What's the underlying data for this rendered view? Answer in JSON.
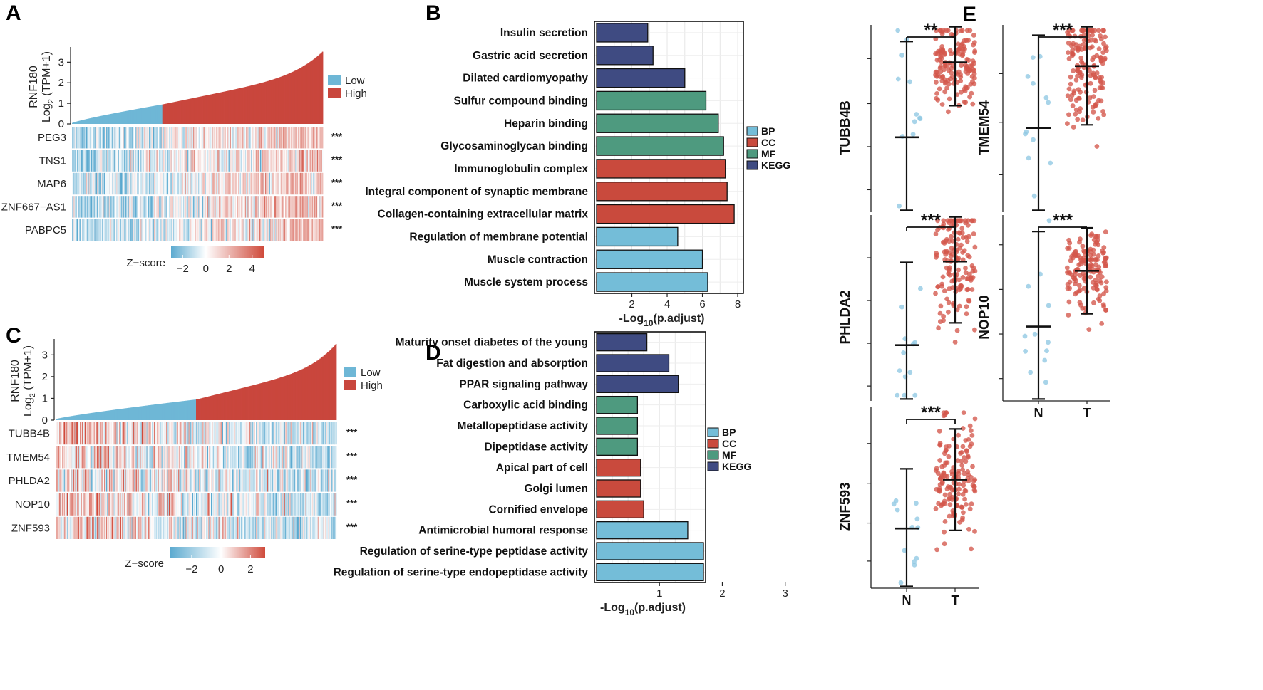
{
  "colors": {
    "low": "#6eb7d6",
    "high": "#c9463d",
    "BP": "#74bdd8",
    "CC": "#c94a3d",
    "MF": "#4e9a7f",
    "KEGG": "#3f4b82",
    "cold": "#5aa9cf",
    "hot": "#cf4a3b"
  },
  "panels": {
    "A": "A",
    "B": "B",
    "C": "C",
    "D": "D",
    "E": "E"
  },
  "chart_data": [
    {
      "id": "A",
      "type": "heatmap",
      "top_bar": {
        "ylabel_line1": "RNF180",
        "ylabel_line2": "Log2 (TPM+1)",
        "ylabel_base": "Log",
        "ylabel_sub": "2",
        "ylabel_rest": " (TPM+1)",
        "yticks": [
          "0",
          "1",
          "2",
          "3"
        ],
        "ylim": [
          0,
          3.6
        ],
        "n_samples": 300,
        "low_fraction": 0.36,
        "min": 0.05,
        "split_value": 0.95,
        "max": 3.55,
        "legend": [
          "Low",
          "High"
        ]
      },
      "rows": [
        "PEG3",
        "TNS1",
        "MAP6",
        "ZNF667−AS1",
        "PABPC5"
      ],
      "significance": [
        "***",
        "***",
        "***",
        "***",
        "***"
      ],
      "colorbar": {
        "label": "Z−score",
        "ticks": [
          "−2",
          "0",
          "2",
          "4"
        ],
        "range": [
          -3,
          5
        ]
      },
      "pattern": "low_cold_high_warm"
    },
    {
      "id": "B",
      "type": "bar",
      "orientation": "horizontal",
      "categories": [
        "Insulin secretion",
        "Gastric acid secretion",
        "Dilated cardiomyopathy",
        "Sulfur compound binding",
        "Heparin binding",
        "Glycosaminoglycan binding",
        "Immunoglobulin complex",
        "Integral component of synaptic membrane",
        "Collagen-containing extracellular matrix",
        "Regulation of membrane potential",
        "Muscle contraction",
        "Muscle system process"
      ],
      "values": [
        2.9,
        3.2,
        5.0,
        6.2,
        6.9,
        7.2,
        7.3,
        7.4,
        7.8,
        4.6,
        6.0,
        6.3
      ],
      "groups": [
        "KEGG",
        "KEGG",
        "KEGG",
        "MF",
        "MF",
        "MF",
        "CC",
        "CC",
        "CC",
        "BP",
        "BP",
        "BP"
      ],
      "xlabel_base": "-Log",
      "xlabel_sub": "10",
      "xlabel_rest": "(p.adjust)",
      "xticks": [
        "2",
        "4",
        "6",
        "8"
      ],
      "xlim": [
        0,
        8.2
      ],
      "legend": [
        "BP",
        "CC",
        "MF",
        "KEGG"
      ]
    },
    {
      "id": "C",
      "type": "heatmap",
      "top_bar": {
        "ylabel_line1": "RNF180",
        "ylabel_base": "Log",
        "ylabel_sub": "2",
        "ylabel_rest": " (TPM+1)",
        "yticks": [
          "0",
          "1",
          "2",
          "3"
        ],
        "ylim": [
          0,
          3.6
        ],
        "n_samples": 300,
        "low_fraction": 0.5,
        "min": 0.05,
        "split_value": 0.95,
        "max": 3.55,
        "legend": [
          "Low",
          "High"
        ]
      },
      "rows": [
        "TUBB4B",
        "TMEM54",
        "PHLDA2",
        "NOP10",
        "ZNF593"
      ],
      "significance": [
        "***",
        "***",
        "***",
        "***",
        "***"
      ],
      "colorbar": {
        "label": "Z−score",
        "ticks": [
          "−2",
          "0",
          "2"
        ],
        "range": [
          -3.5,
          3
        ]
      },
      "pattern": "low_warm_high_cold"
    },
    {
      "id": "D",
      "type": "bar",
      "orientation": "horizontal",
      "categories": [
        "Maturity onset diabetes of the young",
        "Fat digestion and absorption",
        "PPAR signaling pathway",
        "Carboxylic acid binding",
        "Metallopeptidase activity",
        "Dipeptidase activity",
        "Apical part of cell",
        "Golgi lumen",
        "Cornified envelope",
        "Antimicrobial humoral response",
        "Regulation of serine-type peptidase activity",
        "Regulation of serine-type endopeptidase activity"
      ],
      "values": [
        0.8,
        1.15,
        1.3,
        0.65,
        0.65,
        0.65,
        0.7,
        0.7,
        0.75,
        1.45,
        1.7,
        1.7
      ],
      "groups": [
        "KEGG",
        "KEGG",
        "KEGG",
        "MF",
        "MF",
        "MF",
        "CC",
        "CC",
        "CC",
        "BP",
        "BP",
        "BP"
      ],
      "xlabel_base": "-Log",
      "xlabel_sub": "10",
      "xlabel_rest": "(p.adjust)",
      "xticks": [
        "1",
        "2",
        "3"
      ],
      "xlim": [
        0,
        1.7
      ],
      "legend": [
        "BP",
        "CC",
        "MF",
        "KEGG"
      ]
    },
    {
      "id": "E",
      "type": "scatter",
      "groups": [
        "N",
        "T"
      ],
      "panels": [
        {
          "gene": "TUBB4B",
          "sig": "**",
          "N": {
            "mean": 0.4,
            "sd": 0.31,
            "n": 12
          },
          "T": {
            "mean": 0.8,
            "sd": 0.14,
            "n": 150
          }
        },
        {
          "gene": "TMEM54",
          "sig": "***",
          "N": {
            "mean": 0.45,
            "sd": 0.3,
            "n": 12
          },
          "T": {
            "mean": 0.78,
            "sd": 0.19,
            "n": 150
          }
        },
        {
          "gene": "PHLDA2",
          "sig": "***",
          "N": {
            "mean": 0.3,
            "sd": 0.27,
            "n": 12
          },
          "T": {
            "mean": 0.75,
            "sd": 0.2,
            "n": 150
          }
        },
        {
          "gene": "NOP10",
          "sig": "***",
          "N": {
            "mean": 0.4,
            "sd": 0.31,
            "n": 12
          },
          "T": {
            "mean": 0.7,
            "sd": 0.14,
            "n": 150
          }
        },
        {
          "gene": "ZNF593",
          "sig": "***",
          "N": {
            "mean": 0.33,
            "sd": 0.2,
            "n": 12
          },
          "T": {
            "mean": 0.6,
            "sd": 0.17,
            "n": 150
          }
        }
      ]
    }
  ]
}
